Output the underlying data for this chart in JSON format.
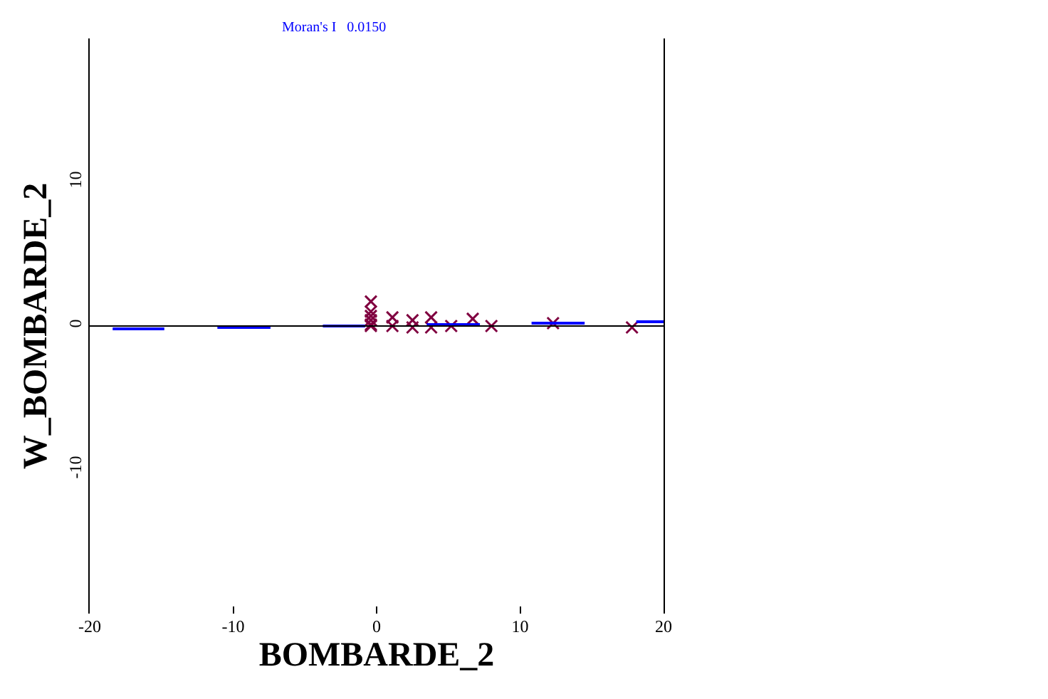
{
  "chart_data": {
    "type": "scatter",
    "xlabel": "BOMBARDE_2",
    "ylabel": "W_BOMBARDE_2",
    "annotations": [
      "Moran's I   0.0150"
    ],
    "xlim": [
      -20,
      20
    ],
    "ylim": [
      -20,
      20
    ],
    "xticks": [
      -20,
      -10,
      0,
      10,
      20
    ],
    "yticks": [
      -10,
      0,
      10
    ],
    "marker": "cross",
    "ref_lines": [
      {
        "axis": "y",
        "value": 0,
        "color": "#000000"
      }
    ],
    "series": [
      {
        "color": "#800040",
        "x": [
          -0.4,
          -0.4,
          -0.4,
          -0.4,
          -0.4,
          -0.4,
          1.1,
          1.1,
          2.5,
          2.5,
          3.8,
          3.8,
          5.2,
          6.7,
          8.0,
          12.3,
          17.8
        ],
        "values": [
          1.7,
          1.0,
          0.7,
          0.4,
          0.1,
          0.0,
          0.6,
          0.0,
          0.4,
          -0.1,
          0.6,
          -0.1,
          0.0,
          0.5,
          0.0,
          0.2,
          -0.1
        ]
      },
      {
        "type": "line",
        "marker": "none",
        "color": "#0000ff",
        "x": [
          -18.4,
          -14.8,
          -13,
          -11.1,
          -7.4,
          -5,
          -3.75,
          -0.8,
          1,
          3.5,
          7.2,
          9,
          10.8,
          14.5,
          16,
          18.1,
          20
        ],
        "values": [
          -0.2,
          -0.2,
          null,
          -0.1,
          -0.1,
          null,
          0.0,
          0.0,
          null,
          0.1,
          0.1,
          null,
          0.2,
          0.2,
          null,
          0.3,
          0.3
        ]
      }
    ]
  }
}
